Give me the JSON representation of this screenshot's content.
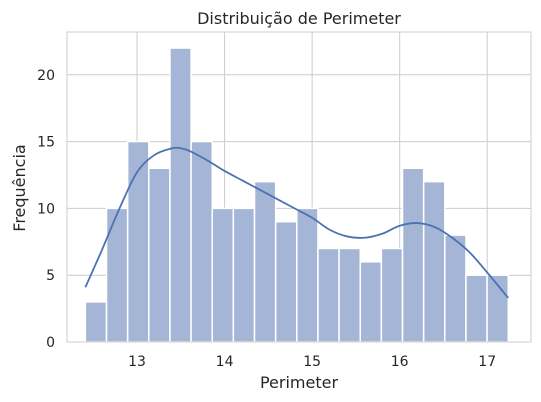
{
  "chart_data": {
    "type": "histogram",
    "title": "Distribuição de Perimeter",
    "xlabel": "Perimeter",
    "ylabel": "Frequência",
    "xlim": [
      12.2,
      17.5
    ],
    "ylim": [
      0,
      23.2
    ],
    "x_ticks": [
      13,
      14,
      15,
      16,
      17
    ],
    "y_ticks": [
      0,
      5,
      10,
      15,
      20
    ],
    "bin_start": 12.41,
    "bin_width": 0.2415,
    "counts": [
      3,
      10,
      15,
      13,
      22,
      15,
      10,
      10,
      12,
      9,
      10,
      7,
      7,
      6,
      7,
      13,
      12,
      8,
      5,
      5
    ],
    "kde": {
      "x": [
        12.41,
        12.6,
        12.8,
        13.0,
        13.2,
        13.4,
        13.5,
        13.6,
        13.8,
        14.0,
        14.2,
        14.4,
        14.6,
        14.8,
        15.0,
        15.2,
        15.4,
        15.6,
        15.8,
        16.0,
        16.2,
        16.4,
        16.6,
        16.8,
        17.0,
        17.24
      ],
      "y": [
        4.1,
        6.9,
        10.0,
        12.7,
        14.0,
        14.5,
        14.5,
        14.3,
        13.6,
        12.8,
        12.1,
        11.4,
        10.7,
        10.0,
        9.3,
        8.4,
        7.9,
        7.8,
        8.1,
        8.7,
        8.9,
        8.6,
        7.8,
        6.7,
        5.2,
        3.3
      ]
    },
    "grid": true,
    "colors": {
      "bar_fill": "#a4b5d6",
      "bar_stroke": "#ffffff",
      "kde_line": "#4c72b0",
      "grid": "#cccccc",
      "text": "#262626"
    }
  }
}
